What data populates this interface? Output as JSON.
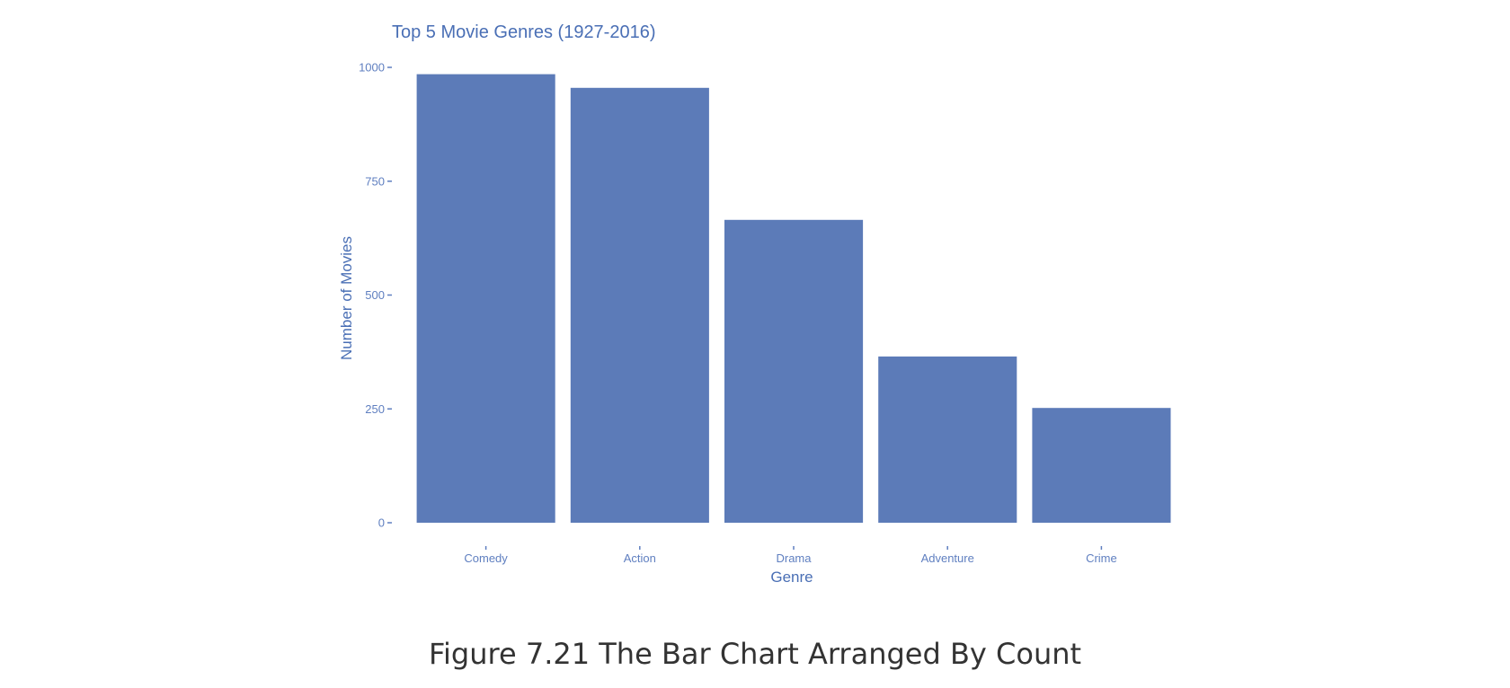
{
  "caption": "Figure 7.21 The Bar Chart Arranged By Count",
  "colors": {
    "bar": "#5c7bb8",
    "axis_text": "#5f7fc0",
    "title_text": "#4a6fb5",
    "tick_mark": "#5f7fc0"
  },
  "chart_data": {
    "type": "bar",
    "title": "Top 5 Movie Genres (1927-2016)",
    "xlabel": "Genre",
    "ylabel": "Number of Movies",
    "categories": [
      "Comedy",
      "Action",
      "Drama",
      "Adventure",
      "Crime"
    ],
    "values": [
      985,
      955,
      665,
      365,
      252
    ],
    "ylim": [
      0,
      1000
    ],
    "yticks": [
      0,
      250,
      500,
      750,
      1000
    ],
    "grid": false,
    "legend": "none"
  }
}
